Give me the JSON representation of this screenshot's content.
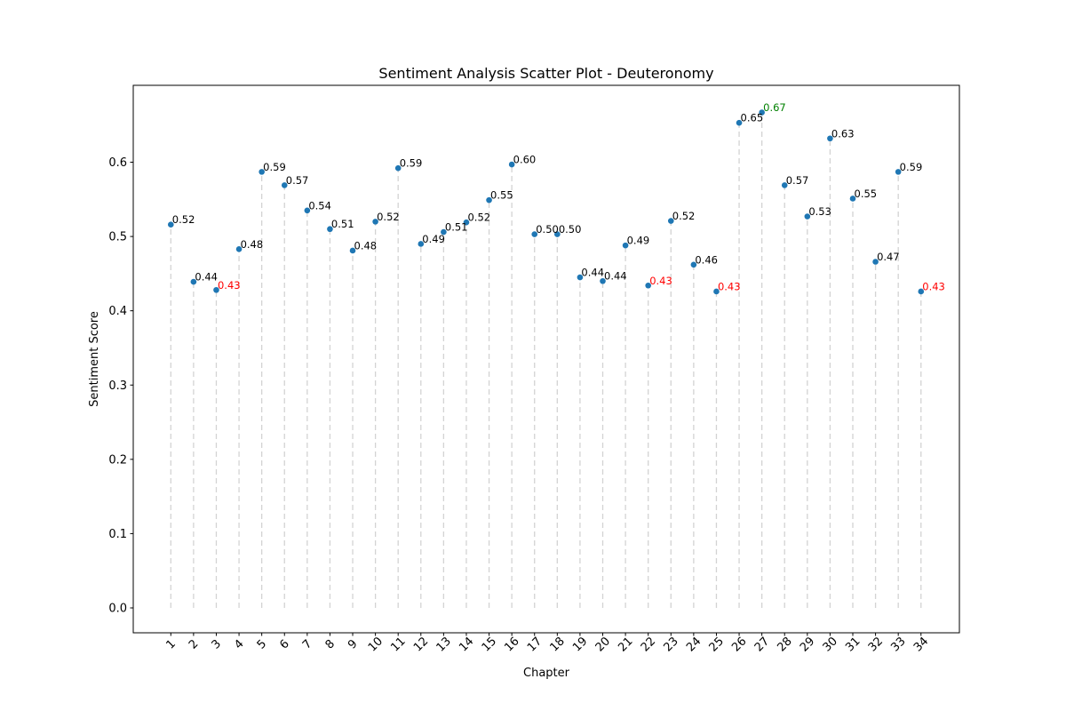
{
  "chart_data": {
    "type": "scatter",
    "title": "Sentiment Analysis Scatter Plot - Deuteronomy",
    "xlabel": "Chapter",
    "ylabel": "Sentiment Score",
    "x": [
      1,
      2,
      3,
      4,
      5,
      6,
      7,
      8,
      9,
      10,
      11,
      12,
      13,
      14,
      15,
      16,
      17,
      18,
      19,
      20,
      21,
      22,
      23,
      24,
      25,
      26,
      27,
      28,
      29,
      30,
      31,
      32,
      33,
      34
    ],
    "values": [
      0.516,
      0.439,
      0.428,
      0.483,
      0.587,
      0.569,
      0.535,
      0.51,
      0.481,
      0.52,
      0.592,
      0.49,
      0.506,
      0.519,
      0.549,
      0.597,
      0.503,
      0.503,
      0.445,
      0.44,
      0.488,
      0.434,
      0.521,
      0.462,
      0.426,
      0.653,
      0.667,
      0.569,
      0.527,
      0.632,
      0.551,
      0.466,
      0.587,
      0.426
    ],
    "labels": [
      "0.52",
      "0.44",
      "0.43",
      "0.48",
      "0.59",
      "0.57",
      "0.54",
      "0.51",
      "0.48",
      "0.52",
      "0.59",
      "0.49",
      "0.51",
      "0.52",
      "0.55",
      "0.60",
      "0.50",
      "0.50",
      "0.44",
      "0.44",
      "0.49",
      "0.43",
      "0.52",
      "0.46",
      "0.43",
      "0.65",
      "0.67",
      "0.57",
      "0.53",
      "0.63",
      "0.55",
      "0.47",
      "0.59",
      "0.43"
    ],
    "label_colors": {
      "default": "#000000",
      "low": "#ff0000",
      "high": "#008000"
    },
    "low_indices": [
      2,
      21,
      24,
      33
    ],
    "high_indices": [
      26
    ],
    "ylim": [
      -0.0335,
      0.7035
    ],
    "yticks": [
      "0.0",
      "0.1",
      "0.2",
      "0.3",
      "0.4",
      "0.5",
      "0.6"
    ],
    "xticks": [
      "1",
      "2",
      "3",
      "4",
      "5",
      "6",
      "7",
      "8",
      "9",
      "10",
      "11",
      "12",
      "13",
      "14",
      "15",
      "16",
      "17",
      "18",
      "19",
      "20",
      "21",
      "22",
      "23",
      "24",
      "25",
      "26",
      "27",
      "28",
      "29",
      "30",
      "31",
      "32",
      "33",
      "34"
    ],
    "marker_color": "#1f77b4",
    "stem_color": "#d3d3d3",
    "grid": false,
    "legend": "none"
  }
}
